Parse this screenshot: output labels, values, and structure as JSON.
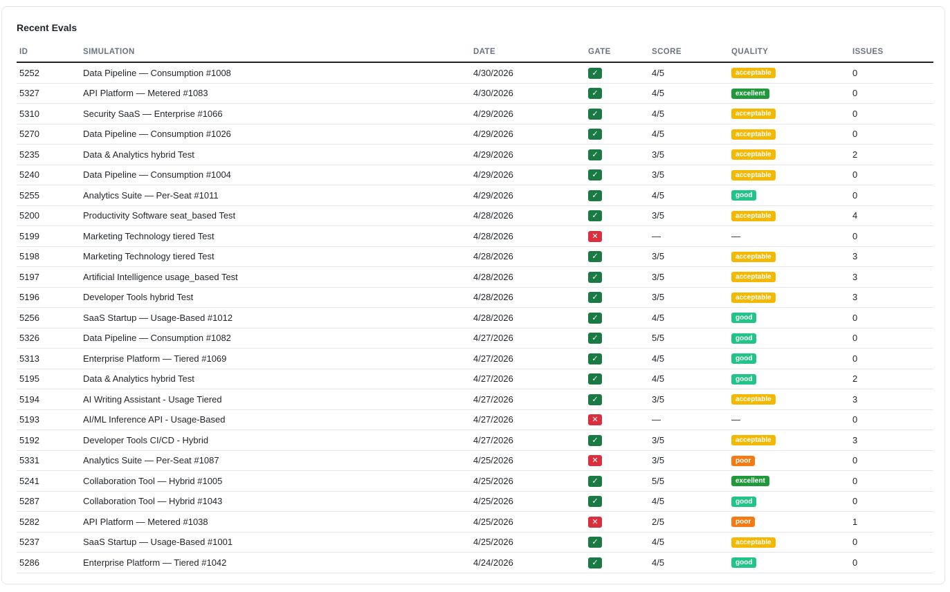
{
  "title": "Recent Evals",
  "columns": [
    "ID",
    "SIMULATION",
    "DATE",
    "GATE",
    "SCORE",
    "QUALITY",
    "ISSUES"
  ],
  "icons": {
    "pass": "check-icon",
    "fail": "x-icon"
  },
  "colors": {
    "pass": "#1b7a43",
    "fail": "#d9303d",
    "acceptable": "#f5b800",
    "excellent": "#1e9a3c",
    "good": "#20c486",
    "poor": "#f57a12"
  },
  "rows": [
    {
      "id": "5252",
      "simulation": "Data Pipeline — Consumption #1008",
      "date": "4/30/2026",
      "gate": "pass",
      "score": "4/5",
      "quality": "acceptable",
      "issues": "0"
    },
    {
      "id": "5327",
      "simulation": "API Platform — Metered #1083",
      "date": "4/30/2026",
      "gate": "pass",
      "score": "4/5",
      "quality": "excellent",
      "issues": "0"
    },
    {
      "id": "5310",
      "simulation": "Security SaaS — Enterprise #1066",
      "date": "4/29/2026",
      "gate": "pass",
      "score": "4/5",
      "quality": "acceptable",
      "issues": "0"
    },
    {
      "id": "5270",
      "simulation": "Data Pipeline — Consumption #1026",
      "date": "4/29/2026",
      "gate": "pass",
      "score": "4/5",
      "quality": "acceptable",
      "issues": "0"
    },
    {
      "id": "5235",
      "simulation": "Data & Analytics hybrid Test",
      "date": "4/29/2026",
      "gate": "pass",
      "score": "3/5",
      "quality": "acceptable",
      "issues": "2"
    },
    {
      "id": "5240",
      "simulation": "Data Pipeline — Consumption #1004",
      "date": "4/29/2026",
      "gate": "pass",
      "score": "3/5",
      "quality": "acceptable",
      "issues": "0"
    },
    {
      "id": "5255",
      "simulation": "Analytics Suite — Per-Seat #1011",
      "date": "4/29/2026",
      "gate": "pass",
      "score": "4/5",
      "quality": "good",
      "issues": "0"
    },
    {
      "id": "5200",
      "simulation": "Productivity Software seat_based Test",
      "date": "4/28/2026",
      "gate": "pass",
      "score": "3/5",
      "quality": "acceptable",
      "issues": "4"
    },
    {
      "id": "5199",
      "simulation": "Marketing Technology tiered Test",
      "date": "4/28/2026",
      "gate": "fail",
      "score": "—",
      "quality": "—",
      "issues": "0"
    },
    {
      "id": "5198",
      "simulation": "Marketing Technology tiered Test",
      "date": "4/28/2026",
      "gate": "pass",
      "score": "3/5",
      "quality": "acceptable",
      "issues": "3"
    },
    {
      "id": "5197",
      "simulation": "Artificial Intelligence usage_based Test",
      "date": "4/28/2026",
      "gate": "pass",
      "score": "3/5",
      "quality": "acceptable",
      "issues": "3"
    },
    {
      "id": "5196",
      "simulation": "Developer Tools hybrid Test",
      "date": "4/28/2026",
      "gate": "pass",
      "score": "3/5",
      "quality": "acceptable",
      "issues": "3"
    },
    {
      "id": "5256",
      "simulation": "SaaS Startup — Usage-Based #1012",
      "date": "4/28/2026",
      "gate": "pass",
      "score": "4/5",
      "quality": "good",
      "issues": "0"
    },
    {
      "id": "5326",
      "simulation": "Data Pipeline — Consumption #1082",
      "date": "4/27/2026",
      "gate": "pass",
      "score": "5/5",
      "quality": "good",
      "issues": "0"
    },
    {
      "id": "5313",
      "simulation": "Enterprise Platform — Tiered #1069",
      "date": "4/27/2026",
      "gate": "pass",
      "score": "4/5",
      "quality": "good",
      "issues": "0"
    },
    {
      "id": "5195",
      "simulation": "Data & Analytics hybrid Test",
      "date": "4/27/2026",
      "gate": "pass",
      "score": "4/5",
      "quality": "good",
      "issues": "2"
    },
    {
      "id": "5194",
      "simulation": "AI Writing Assistant - Usage Tiered",
      "date": "4/27/2026",
      "gate": "pass",
      "score": "3/5",
      "quality": "acceptable",
      "issues": "3"
    },
    {
      "id": "5193",
      "simulation": "AI/ML Inference API - Usage-Based",
      "date": "4/27/2026",
      "gate": "fail",
      "score": "—",
      "quality": "—",
      "issues": "0"
    },
    {
      "id": "5192",
      "simulation": "Developer Tools CI/CD - Hybrid",
      "date": "4/27/2026",
      "gate": "pass",
      "score": "3/5",
      "quality": "acceptable",
      "issues": "3"
    },
    {
      "id": "5331",
      "simulation": "Analytics Suite — Per-Seat #1087",
      "date": "4/25/2026",
      "gate": "fail",
      "score": "3/5",
      "quality": "poor",
      "issues": "0"
    },
    {
      "id": "5241",
      "simulation": "Collaboration Tool — Hybrid #1005",
      "date": "4/25/2026",
      "gate": "pass",
      "score": "5/5",
      "quality": "excellent",
      "issues": "0"
    },
    {
      "id": "5287",
      "simulation": "Collaboration Tool — Hybrid #1043",
      "date": "4/25/2026",
      "gate": "pass",
      "score": "4/5",
      "quality": "good",
      "issues": "0"
    },
    {
      "id": "5282",
      "simulation": "API Platform — Metered #1038",
      "date": "4/25/2026",
      "gate": "fail",
      "score": "2/5",
      "quality": "poor",
      "issues": "1"
    },
    {
      "id": "5237",
      "simulation": "SaaS Startup — Usage-Based #1001",
      "date": "4/25/2026",
      "gate": "pass",
      "score": "4/5",
      "quality": "acceptable",
      "issues": "0"
    },
    {
      "id": "5286",
      "simulation": "Enterprise Platform — Tiered #1042",
      "date": "4/24/2026",
      "gate": "pass",
      "score": "4/5",
      "quality": "good",
      "issues": "0"
    }
  ]
}
